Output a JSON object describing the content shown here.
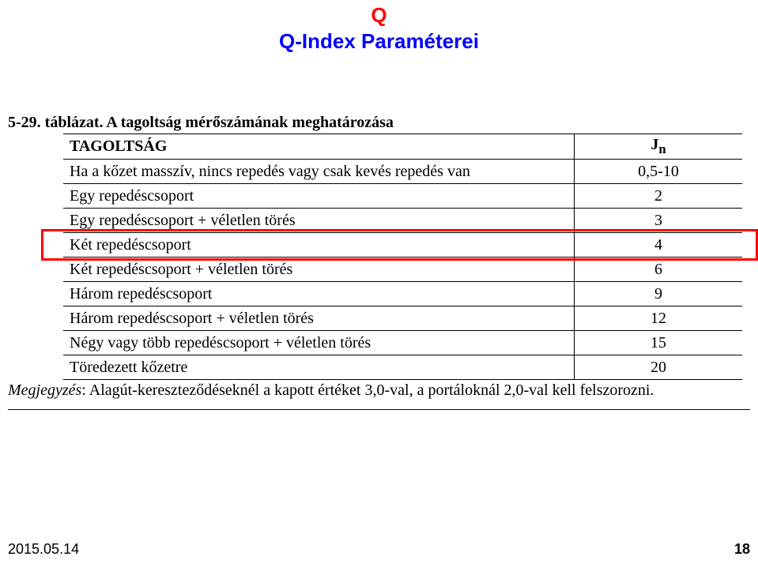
{
  "title": {
    "top": "Q",
    "sub": "Q-Index Paraméterei",
    "color_top": "#ff0000",
    "color_sub": "#0000ff"
  },
  "caption": {
    "prefix_bold": "5-29. táblázat. A tagoltság mérőszámának meghatározása"
  },
  "table": {
    "header_desc": "TAGOLTSÁG",
    "header_val": "J",
    "header_val_sub": "n",
    "rows": [
      {
        "desc": "Ha a kőzet masszív, nincs repedés vagy csak kevés repedés van",
        "val": "0,5-10"
      },
      {
        "desc": "Egy repedéscsoport",
        "val": "2"
      },
      {
        "desc": "Egy repedéscsoport + véletlen törés",
        "val": "3"
      },
      {
        "desc": "Két repedéscsoport",
        "val": "4"
      },
      {
        "desc": "Két repedéscsoport + véletlen törés",
        "val": "6"
      },
      {
        "desc": "Három repedéscsoport",
        "val": "9"
      },
      {
        "desc": "Három repedéscsoport + véletlen törés",
        "val": "12"
      },
      {
        "desc": "Négy vagy több repedéscsoport + véletlen törés",
        "val": "15"
      },
      {
        "desc": "Töredezett kőzetre",
        "val": "20"
      }
    ],
    "highlighted_row_index": 3,
    "highlight_color": "#ff0000"
  },
  "note": {
    "label_italic": "Megjegyzés",
    "text": ": Alagút-kereszteződéseknél a kapott értéket 3,0-val, a portáloknál 2,0-val kell felszorozni."
  },
  "footer": {
    "date": "2015.05.14",
    "page": "18"
  },
  "style": {
    "background_color": "#ffffff",
    "table_font": "Times New Roman",
    "table_fontsize_pt": 15,
    "title_fontsize_pt": 20
  }
}
